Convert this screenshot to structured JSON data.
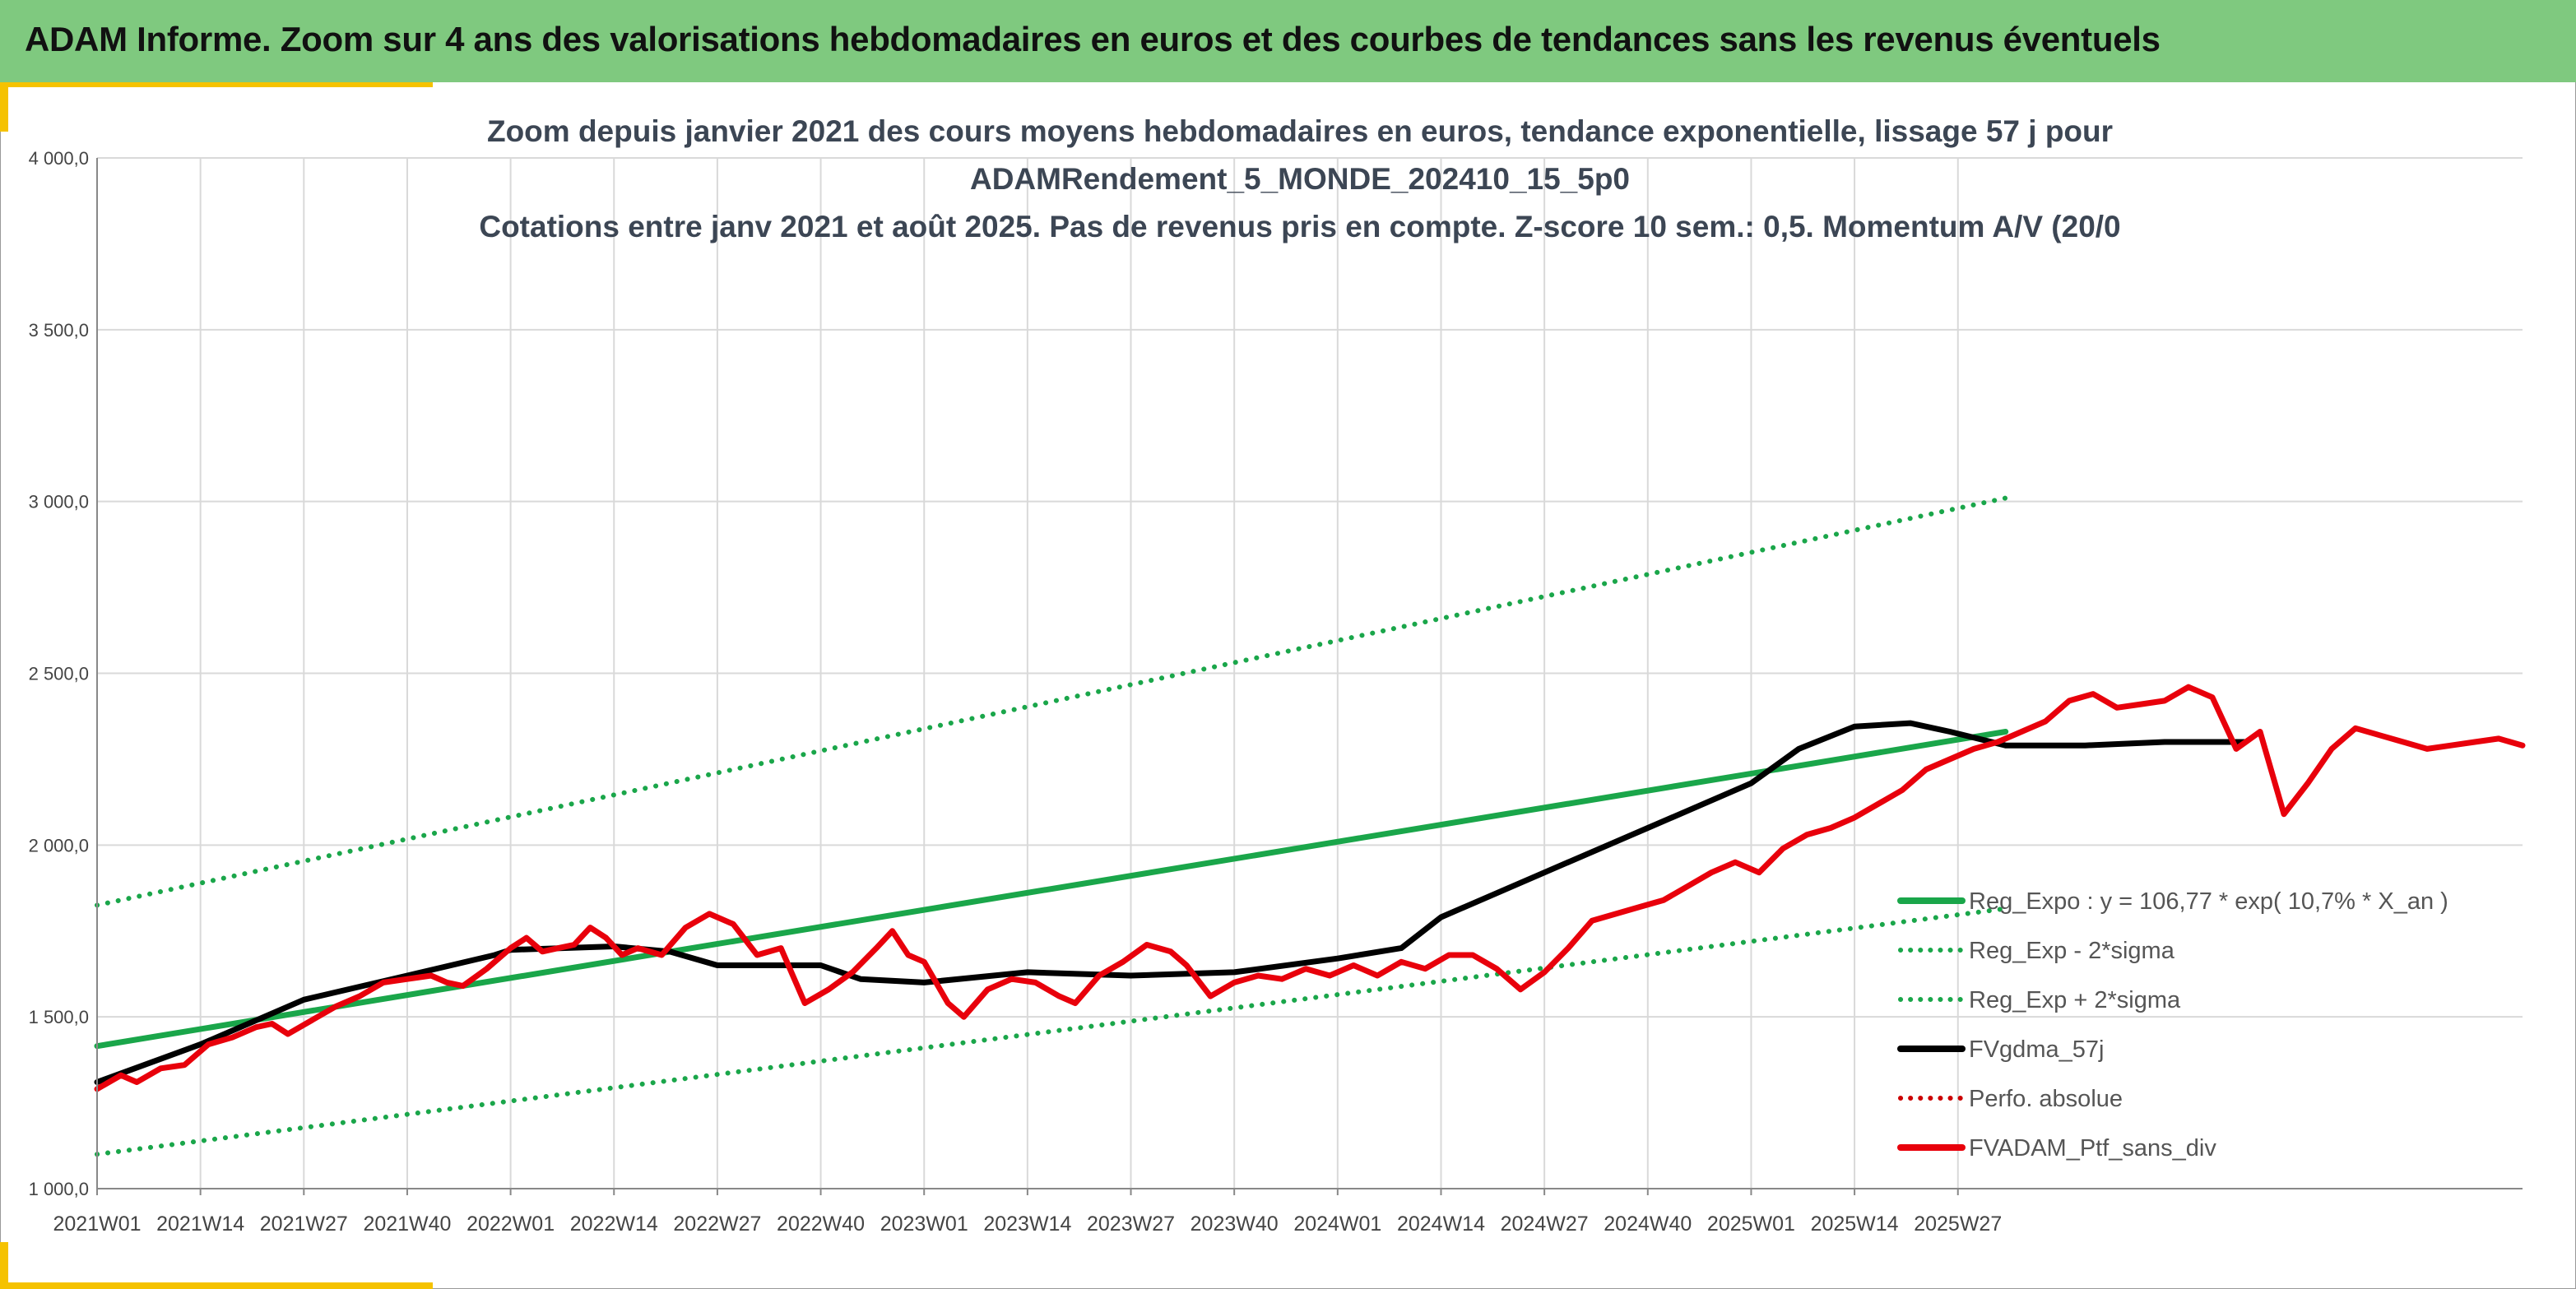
{
  "header": {
    "title": "ADAM Informe. Zoom sur 4 ans des valorisations hebdomadaires en euros et des courbes de tendances sans les revenus éventuels"
  },
  "colors": {
    "header_bg": "#7fc97f",
    "accent": "#f5c200",
    "trend": "#1aa64a",
    "smooth": "#000000",
    "price": "#e8000b",
    "perf": "#cc0000"
  },
  "chart_data": {
    "type": "line",
    "title_lines": [
      "Zoom depuis janvier 2021 des cours moyens hebdomadaires en euros, tendance exponentielle, lissage 57 j pour",
      "ADAMRendement_5_MONDE_202410_15_5p0",
      "Cotations entre janv 2021 et août 2025. Pas de revenus pris en compte. Z-score 10 sem.: 0,5. Momentum A/V (20/0"
    ],
    "xlabel": "",
    "ylabel": "",
    "ylim": [
      1000,
      4000
    ],
    "y_ticks": [
      "1 000,0",
      "1 500,0",
      "2 000,0",
      "2 500,0",
      "3 000,0",
      "3 500,0",
      "4 000,0"
    ],
    "x_ticks": [
      "2021W01",
      "2021W14",
      "2021W27",
      "2021W40",
      "2022W01",
      "2022W14",
      "2022W27",
      "2022W40",
      "2023W01",
      "2023W14",
      "2023W27",
      "2023W40",
      "2024W01",
      "2024W14",
      "2024W27",
      "2024W40",
      "2025W01",
      "2025W14",
      "2025W27"
    ],
    "weeks_total": 241,
    "grid": true,
    "legend_position": "right",
    "series": [
      {
        "name": "Reg_Expo : y = 106,77 * exp( 10,7% *  X_an )",
        "style": "solid",
        "color": "#1aa64a",
        "points": [
          [
            0,
            1415
          ],
          [
            240,
            2330
          ]
        ]
      },
      {
        "name": "Reg_Exp - 2*sigma",
        "style": "dotted",
        "color": "#1aa64a",
        "points": [
          [
            0,
            1100
          ],
          [
            240,
            1815
          ]
        ]
      },
      {
        "name": "Reg_Exp + 2*sigma",
        "style": "dotted",
        "color": "#1aa64a",
        "points": [
          [
            0,
            1825
          ],
          [
            240,
            3010
          ]
        ]
      },
      {
        "name": "FVgdma_57j",
        "style": "solid",
        "color": "#000000",
        "points": [
          [
            0,
            1310
          ],
          [
            13,
            1420
          ],
          [
            26,
            1550
          ],
          [
            39,
            1620
          ],
          [
            50,
            1680
          ],
          [
            52,
            1695
          ],
          [
            65,
            1705
          ],
          [
            72,
            1690
          ],
          [
            78,
            1650
          ],
          [
            91,
            1650
          ],
          [
            96,
            1610
          ],
          [
            104,
            1600
          ],
          [
            117,
            1630
          ],
          [
            130,
            1620
          ],
          [
            143,
            1630
          ],
          [
            156,
            1670
          ],
          [
            164,
            1700
          ],
          [
            169,
            1790
          ],
          [
            182,
            1920
          ],
          [
            195,
            2050
          ],
          [
            208,
            2180
          ],
          [
            214,
            2280
          ],
          [
            221,
            2345
          ],
          [
            228,
            2355
          ],
          [
            233,
            2330
          ],
          [
            240,
            2290
          ],
          [
            250,
            2290
          ],
          [
            260,
            2300
          ],
          [
            270,
            2300
          ]
        ]
      },
      {
        "name": "Perfo. absolue",
        "style": "dotted",
        "color": "#cc0000",
        "points": []
      },
      {
        "name": "FVADAM_Ptf_sans_div",
        "style": "solid",
        "color": "#e8000b",
        "points": [
          [
            0,
            1290
          ],
          [
            3,
            1330
          ],
          [
            5,
            1310
          ],
          [
            8,
            1350
          ],
          [
            11,
            1360
          ],
          [
            14,
            1420
          ],
          [
            17,
            1440
          ],
          [
            20,
            1470
          ],
          [
            22,
            1480
          ],
          [
            24,
            1450
          ],
          [
            27,
            1490
          ],
          [
            30,
            1530
          ],
          [
            33,
            1560
          ],
          [
            36,
            1600
          ],
          [
            39,
            1610
          ],
          [
            42,
            1620
          ],
          [
            44,
            1600
          ],
          [
            46,
            1590
          ],
          [
            49,
            1640
          ],
          [
            52,
            1700
          ],
          [
            54,
            1730
          ],
          [
            56,
            1690
          ],
          [
            58,
            1700
          ],
          [
            60,
            1710
          ],
          [
            62,
            1760
          ],
          [
            64,
            1730
          ],
          [
            66,
            1680
          ],
          [
            68,
            1700
          ],
          [
            71,
            1680
          ],
          [
            74,
            1760
          ],
          [
            77,
            1800
          ],
          [
            80,
            1770
          ],
          [
            83,
            1680
          ],
          [
            86,
            1700
          ],
          [
            89,
            1540
          ],
          [
            92,
            1580
          ],
          [
            95,
            1630
          ],
          [
            98,
            1700
          ],
          [
            100,
            1750
          ],
          [
            102,
            1680
          ],
          [
            104,
            1660
          ],
          [
            107,
            1540
          ],
          [
            109,
            1500
          ],
          [
            112,
            1580
          ],
          [
            115,
            1610
          ],
          [
            118,
            1600
          ],
          [
            121,
            1560
          ],
          [
            123,
            1540
          ],
          [
            126,
            1620
          ],
          [
            129,
            1660
          ],
          [
            132,
            1710
          ],
          [
            135,
            1690
          ],
          [
            137,
            1650
          ],
          [
            140,
            1560
          ],
          [
            143,
            1600
          ],
          [
            146,
            1620
          ],
          [
            149,
            1610
          ],
          [
            152,
            1640
          ],
          [
            155,
            1620
          ],
          [
            158,
            1650
          ],
          [
            161,
            1620
          ],
          [
            164,
            1660
          ],
          [
            167,
            1640
          ],
          [
            170,
            1680
          ],
          [
            173,
            1680
          ],
          [
            176,
            1640
          ],
          [
            179,
            1580
          ],
          [
            182,
            1630
          ],
          [
            185,
            1700
          ],
          [
            188,
            1780
          ],
          [
            191,
            1800
          ],
          [
            194,
            1820
          ],
          [
            197,
            1840
          ],
          [
            200,
            1880
          ],
          [
            203,
            1920
          ],
          [
            206,
            1950
          ],
          [
            209,
            1920
          ],
          [
            212,
            1990
          ],
          [
            215,
            2030
          ],
          [
            218,
            2050
          ],
          [
            221,
            2080
          ],
          [
            224,
            2120
          ],
          [
            227,
            2160
          ],
          [
            230,
            2220
          ],
          [
            233,
            2250
          ],
          [
            236,
            2280
          ],
          [
            239,
            2300
          ],
          [
            242,
            2330
          ],
          [
            245,
            2360
          ],
          [
            248,
            2420
          ],
          [
            251,
            2440
          ],
          [
            254,
            2400
          ],
          [
            257,
            2410
          ],
          [
            260,
            2420
          ],
          [
            263,
            2460
          ],
          [
            266,
            2430
          ],
          [
            269,
            2280
          ],
          [
            272,
            2330
          ],
          [
            275,
            2090
          ],
          [
            278,
            2180
          ],
          [
            281,
            2280
          ],
          [
            284,
            2340
          ],
          [
            287,
            2320
          ],
          [
            290,
            2300
          ],
          [
            293,
            2280
          ],
          [
            296,
            2290
          ],
          [
            299,
            2300
          ],
          [
            302,
            2310
          ],
          [
            305,
            2290
          ]
        ]
      }
    ]
  }
}
